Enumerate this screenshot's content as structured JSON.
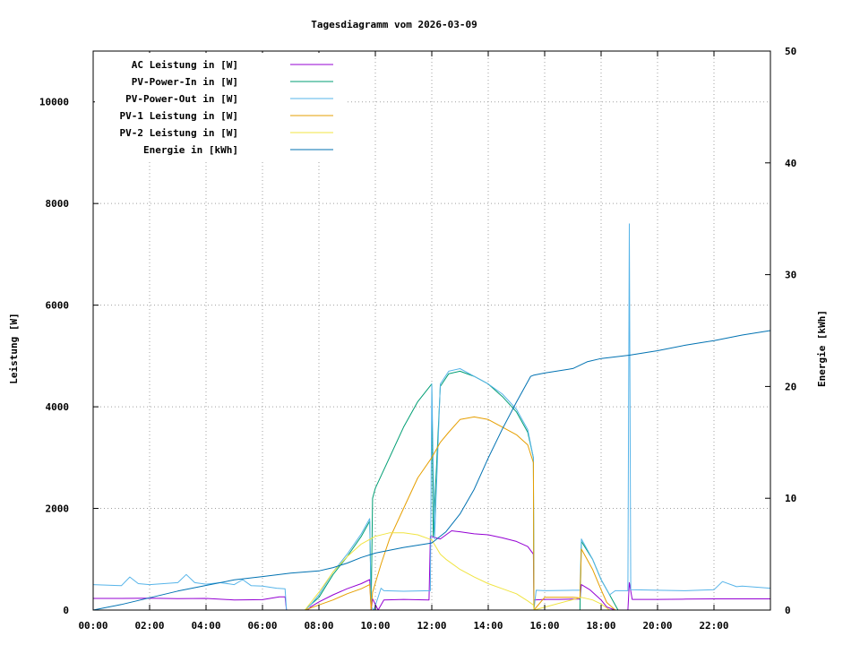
{
  "chart_data": {
    "type": "line",
    "title": "Tagesdiagramm vom 2026-03-09",
    "xlabel": "",
    "ylabel": "Leistung [W]",
    "y2label": "Energie [kWh]",
    "xlim": [
      0,
      24
    ],
    "ylim": [
      0,
      11000
    ],
    "y2lim": [
      0,
      50
    ],
    "grid": true,
    "legend_position": "top-left",
    "x_ticks": [
      {
        "v": 0,
        "label": "00:00"
      },
      {
        "v": 2,
        "label": "02:00"
      },
      {
        "v": 4,
        "label": "04:00"
      },
      {
        "v": 6,
        "label": "06:00"
      },
      {
        "v": 8,
        "label": "08:00"
      },
      {
        "v": 10,
        "label": "10:00"
      },
      {
        "v": 12,
        "label": "12:00"
      },
      {
        "v": 14,
        "label": "14:00"
      },
      {
        "v": 16,
        "label": "16:00"
      },
      {
        "v": 18,
        "label": "18:00"
      },
      {
        "v": 20,
        "label": "20:00"
      },
      {
        "v": 22,
        "label": "22:00"
      }
    ],
    "y_ticks": [
      {
        "v": 0,
        "label": "0"
      },
      {
        "v": 2000,
        "label": "2000"
      },
      {
        "v": 4000,
        "label": "4000"
      },
      {
        "v": 6000,
        "label": "6000"
      },
      {
        "v": 8000,
        "label": "8000"
      },
      {
        "v": 10000,
        "label": "10000"
      }
    ],
    "y2_ticks": [
      {
        "v": 0,
        "label": "0"
      },
      {
        "v": 10,
        "label": "10"
      },
      {
        "v": 20,
        "label": "20"
      },
      {
        "v": 30,
        "label": "30"
      },
      {
        "v": 40,
        "label": "40"
      },
      {
        "v": 50,
        "label": "50"
      }
    ],
    "series": [
      {
        "name": "AC Leistung in [W]",
        "color": "#9400d3",
        "axis": "y",
        "points": [
          [
            0,
            230
          ],
          [
            1,
            230
          ],
          [
            2,
            235
          ],
          [
            3,
            225
          ],
          [
            4,
            230
          ],
          [
            5,
            200
          ],
          [
            6,
            205
          ],
          [
            6.6,
            260
          ],
          [
            6.8,
            260
          ],
          [
            6.85,
            0
          ],
          [
            7.6,
            0
          ],
          [
            7.7,
            60
          ],
          [
            8,
            160
          ],
          [
            8.5,
            300
          ],
          [
            9,
            420
          ],
          [
            9.5,
            520
          ],
          [
            9.8,
            600
          ],
          [
            9.85,
            0
          ],
          [
            9.9,
            220
          ],
          [
            10.1,
            0
          ],
          [
            10.3,
            200
          ],
          [
            11,
            210
          ],
          [
            11.9,
            200
          ],
          [
            11.95,
            1450
          ],
          [
            12.3,
            1400
          ],
          [
            12.7,
            1560
          ],
          [
            13,
            1540
          ],
          [
            13.5,
            1500
          ],
          [
            14,
            1480
          ],
          [
            14.5,
            1420
          ],
          [
            15,
            1350
          ],
          [
            15.4,
            1250
          ],
          [
            15.6,
            1100
          ],
          [
            15.62,
            200
          ],
          [
            16,
            210
          ],
          [
            16.5,
            210
          ],
          [
            17,
            215
          ],
          [
            17.25,
            215
          ],
          [
            17.3,
            500
          ],
          [
            17.6,
            400
          ],
          [
            18,
            200
          ],
          [
            18.2,
            60
          ],
          [
            18.5,
            0
          ],
          [
            18.95,
            0
          ],
          [
            19.0,
            540
          ],
          [
            19.1,
            210
          ],
          [
            20,
            210
          ],
          [
            21,
            215
          ],
          [
            22,
            220
          ],
          [
            23,
            220
          ],
          [
            24,
            220
          ]
        ]
      },
      {
        "name": "PV-Power-In in [W]",
        "color": "#009e73",
        "axis": "y",
        "points": [
          [
            7.5,
            0
          ],
          [
            8,
            250
          ],
          [
            8.5,
            700
          ],
          [
            9,
            1050
          ],
          [
            9.5,
            1450
          ],
          [
            9.8,
            1750
          ],
          [
            9.85,
            60
          ],
          [
            9.9,
            2200
          ],
          [
            10,
            2400
          ],
          [
            10.5,
            3000
          ],
          [
            11,
            3600
          ],
          [
            11.5,
            4100
          ],
          [
            12,
            4450
          ],
          [
            12.05,
            1450
          ],
          [
            12.3,
            4400
          ],
          [
            12.6,
            4650
          ],
          [
            13,
            4700
          ],
          [
            13.5,
            4600
          ],
          [
            14,
            4450
          ],
          [
            14.5,
            4200
          ],
          [
            15,
            3900
          ],
          [
            15.4,
            3500
          ],
          [
            15.6,
            3000
          ],
          [
            15.62,
            0
          ],
          [
            17.25,
            0
          ],
          [
            17.3,
            1350
          ],
          [
            17.7,
            1000
          ],
          [
            18,
            600
          ],
          [
            18.3,
            300
          ],
          [
            18.6,
            0
          ]
        ]
      },
      {
        "name": "PV-Power-Out in [W]",
        "color": "#56b4e9",
        "axis": "y",
        "points": [
          [
            0,
            500
          ],
          [
            1,
            480
          ],
          [
            1.3,
            650
          ],
          [
            1.6,
            520
          ],
          [
            2,
            500
          ],
          [
            3,
            540
          ],
          [
            3.3,
            700
          ],
          [
            3.6,
            540
          ],
          [
            4,
            510
          ],
          [
            4.5,
            540
          ],
          [
            5,
            500
          ],
          [
            5.3,
            600
          ],
          [
            5.6,
            480
          ],
          [
            6,
            470
          ],
          [
            6.5,
            430
          ],
          [
            6.8,
            420
          ],
          [
            6.85,
            0
          ],
          [
            7.5,
            0
          ],
          [
            7.7,
            100
          ],
          [
            8,
            300
          ],
          [
            8.5,
            750
          ],
          [
            9,
            1100
          ],
          [
            9.5,
            1500
          ],
          [
            9.8,
            1800
          ],
          [
            9.85,
            60
          ],
          [
            9.95,
            0
          ],
          [
            10.2,
            430
          ],
          [
            10.3,
            380
          ],
          [
            11,
            370
          ],
          [
            11.95,
            380
          ],
          [
            12,
            4450
          ],
          [
            12.1,
            1400
          ],
          [
            12.3,
            4450
          ],
          [
            12.6,
            4700
          ],
          [
            13,
            4750
          ],
          [
            13.5,
            4600
          ],
          [
            14,
            4450
          ],
          [
            14.5,
            4250
          ],
          [
            15,
            3950
          ],
          [
            15.4,
            3550
          ],
          [
            15.6,
            3000
          ],
          [
            15.62,
            0
          ],
          [
            15.7,
            390
          ],
          [
            16,
            380
          ],
          [
            17,
            390
          ],
          [
            17.25,
            390
          ],
          [
            17.3,
            1400
          ],
          [
            17.7,
            1000
          ],
          [
            18,
            600
          ],
          [
            18.3,
            300
          ],
          [
            18.5,
            380
          ],
          [
            18.95,
            380
          ],
          [
            19.0,
            7600
          ],
          [
            19.05,
            400
          ],
          [
            20,
            390
          ],
          [
            21,
            380
          ],
          [
            22,
            400
          ],
          [
            22.3,
            560
          ],
          [
            22.8,
            460
          ],
          [
            23,
            470
          ],
          [
            24,
            430
          ]
        ]
      },
      {
        "name": "PV-1 Leistung in [W]",
        "color": "#e69f00",
        "axis": "y",
        "points": [
          [
            7.5,
            0
          ],
          [
            8,
            100
          ],
          [
            8.5,
            200
          ],
          [
            9,
            320
          ],
          [
            9.5,
            420
          ],
          [
            9.8,
            500
          ],
          [
            9.85,
            0
          ],
          [
            9.9,
            350
          ],
          [
            10.2,
            900
          ],
          [
            10.5,
            1400
          ],
          [
            11,
            2000
          ],
          [
            11.5,
            2600
          ],
          [
            12,
            3000
          ],
          [
            12.3,
            3300
          ],
          [
            12.6,
            3500
          ],
          [
            13,
            3750
          ],
          [
            13.5,
            3800
          ],
          [
            14,
            3750
          ],
          [
            14.5,
            3600
          ],
          [
            15,
            3450
          ],
          [
            15.4,
            3250
          ],
          [
            15.6,
            2900
          ],
          [
            15.62,
            0
          ],
          [
            16,
            250
          ],
          [
            17,
            250
          ],
          [
            17.25,
            240
          ],
          [
            17.3,
            1200
          ],
          [
            17.7,
            800
          ],
          [
            18,
            400
          ],
          [
            18.2,
            150
          ],
          [
            18.5,
            0
          ]
        ]
      },
      {
        "name": "PV-2 Leistung in [W]",
        "color": "#f0e442",
        "axis": "y",
        "points": [
          [
            7.5,
            0
          ],
          [
            8,
            350
          ],
          [
            8.5,
            750
          ],
          [
            9,
            1050
          ],
          [
            9.5,
            1300
          ],
          [
            10,
            1450
          ],
          [
            10.5,
            1520
          ],
          [
            11,
            1520
          ],
          [
            11.5,
            1480
          ],
          [
            12,
            1380
          ],
          [
            12.3,
            1100
          ],
          [
            12.5,
            1000
          ],
          [
            13,
            800
          ],
          [
            13.5,
            650
          ],
          [
            14,
            520
          ],
          [
            14.5,
            420
          ],
          [
            15,
            320
          ],
          [
            15.4,
            180
          ],
          [
            15.6,
            100
          ],
          [
            15.62,
            0
          ],
          [
            17.3,
            250
          ],
          [
            17.7,
            200
          ],
          [
            18,
            120
          ],
          [
            18.3,
            0
          ]
        ]
      },
      {
        "name": "Energie in [kWh]",
        "color": "#0072b2",
        "axis": "y2",
        "points": [
          [
            0,
            0
          ],
          [
            1,
            0.5
          ],
          [
            2,
            1.1
          ],
          [
            3,
            1.7
          ],
          [
            4,
            2.2
          ],
          [
            5,
            2.7
          ],
          [
            6,
            3.0
          ],
          [
            7,
            3.3
          ],
          [
            8,
            3.5
          ],
          [
            8.5,
            3.8
          ],
          [
            9,
            4.2
          ],
          [
            9.5,
            4.7
          ],
          [
            10,
            5.1
          ],
          [
            11,
            5.6
          ],
          [
            12,
            6.0
          ],
          [
            12.5,
            7.0
          ],
          [
            13,
            8.6
          ],
          [
            13.5,
            10.8
          ],
          [
            14,
            13.6
          ],
          [
            14.5,
            16.2
          ],
          [
            15,
            18.6
          ],
          [
            15.5,
            20.9
          ],
          [
            15.6,
            21.0
          ],
          [
            16,
            21.2
          ],
          [
            17,
            21.6
          ],
          [
            17.5,
            22.2
          ],
          [
            18,
            22.5
          ],
          [
            19,
            22.8
          ],
          [
            20,
            23.2
          ],
          [
            21,
            23.7
          ],
          [
            22,
            24.1
          ],
          [
            23,
            24.6
          ],
          [
            24,
            25.0
          ]
        ]
      }
    ]
  }
}
